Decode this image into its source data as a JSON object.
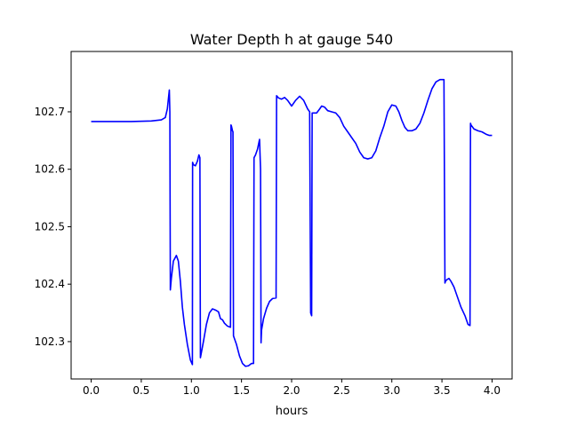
{
  "chart_data": {
    "type": "line",
    "title": "Water Depth h at gauge 540",
    "xlabel": "hours",
    "ylabel": "",
    "xlim": [
      -0.2,
      4.2
    ],
    "ylim": [
      102.235,
      102.805
    ],
    "x_ticks": [
      0.0,
      0.5,
      1.0,
      1.5,
      2.0,
      2.5,
      3.0,
      3.5,
      4.0
    ],
    "x_tick_labels": [
      "0.0",
      "0.5",
      "1.0",
      "1.5",
      "2.0",
      "2.5",
      "3.0",
      "3.5",
      "4.0"
    ],
    "y_ticks": [
      102.3,
      102.4,
      102.5,
      102.6,
      102.7
    ],
    "y_tick_labels": [
      "102.3",
      "102.4",
      "102.5",
      "102.6",
      "102.7"
    ],
    "grid": false,
    "legend": "none",
    "series": [
      {
        "color": "#0000ff",
        "x": [
          0.0,
          0.2,
          0.4,
          0.6,
          0.7,
          0.74,
          0.76,
          0.78,
          0.785,
          0.79,
          0.8,
          0.82,
          0.85,
          0.87,
          0.89,
          0.91,
          0.93,
          0.96,
          0.99,
          1.01,
          1.012,
          1.02,
          1.04,
          1.06,
          1.075,
          1.085,
          1.09,
          1.12,
          1.15,
          1.18,
          1.21,
          1.24,
          1.27,
          1.29,
          1.31,
          1.33,
          1.36,
          1.39,
          1.395,
          1.4,
          1.41,
          1.415,
          1.42,
          1.45,
          1.48,
          1.51,
          1.54,
          1.57,
          1.6,
          1.62,
          1.625,
          1.64,
          1.66,
          1.68,
          1.69,
          1.695,
          1.7,
          1.72,
          1.75,
          1.78,
          1.81,
          1.845,
          1.85,
          1.87,
          1.9,
          1.93,
          1.96,
          2.0,
          2.04,
          2.08,
          2.12,
          2.16,
          2.18,
          2.19,
          2.2,
          2.205,
          2.21,
          2.25,
          2.28,
          2.3,
          2.33,
          2.36,
          2.4,
          2.44,
          2.48,
          2.52,
          2.56,
          2.6,
          2.64,
          2.68,
          2.72,
          2.76,
          2.8,
          2.84,
          2.88,
          2.92,
          2.96,
          3.0,
          3.04,
          3.07,
          3.1,
          3.13,
          3.16,
          3.2,
          3.24,
          3.28,
          3.32,
          3.36,
          3.4,
          3.44,
          3.48,
          3.52,
          3.53,
          3.535,
          3.55,
          3.57,
          3.59,
          3.62,
          3.65,
          3.69,
          3.73,
          3.76,
          3.78,
          3.785,
          3.79,
          3.82,
          3.86,
          3.9,
          3.94,
          3.97,
          4.0
        ],
        "y": [
          102.683,
          102.683,
          102.683,
          102.684,
          102.686,
          102.69,
          102.705,
          102.738,
          102.7,
          102.39,
          102.41,
          102.44,
          102.45,
          102.44,
          102.405,
          102.36,
          102.33,
          102.295,
          102.268,
          102.26,
          102.612,
          102.608,
          102.606,
          102.614,
          102.625,
          102.62,
          102.272,
          102.3,
          102.33,
          102.35,
          102.357,
          102.355,
          102.352,
          102.34,
          102.338,
          102.332,
          102.327,
          102.325,
          102.677,
          102.675,
          102.667,
          102.665,
          102.31,
          102.295,
          102.275,
          102.262,
          102.257,
          102.258,
          102.262,
          102.262,
          102.62,
          102.625,
          102.635,
          102.652,
          102.6,
          102.298,
          102.32,
          102.34,
          102.358,
          102.37,
          102.375,
          102.376,
          102.728,
          102.724,
          102.722,
          102.725,
          102.72,
          102.71,
          102.72,
          102.727,
          102.72,
          102.705,
          102.7,
          102.35,
          102.345,
          102.698,
          102.698,
          102.698,
          102.705,
          102.71,
          102.708,
          102.702,
          102.7,
          102.698,
          102.69,
          102.675,
          102.665,
          102.655,
          102.645,
          102.63,
          102.62,
          102.618,
          102.62,
          102.632,
          102.655,
          102.675,
          102.7,
          102.712,
          102.71,
          102.7,
          102.685,
          102.673,
          102.667,
          102.667,
          102.67,
          102.68,
          102.698,
          102.72,
          102.74,
          102.752,
          102.756,
          102.756,
          102.402,
          102.405,
          102.408,
          102.41,
          102.405,
          102.395,
          102.38,
          102.36,
          102.345,
          102.33,
          102.328,
          102.68,
          102.677,
          102.67,
          102.667,
          102.665,
          102.661,
          102.659,
          102.659
        ]
      }
    ]
  }
}
